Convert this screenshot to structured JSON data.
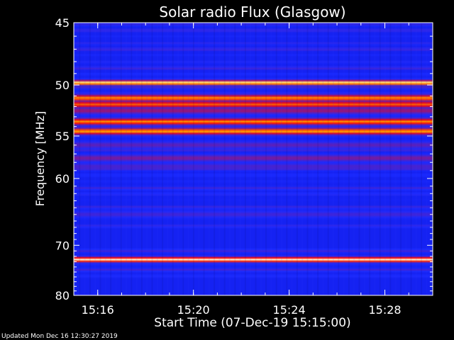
{
  "chart_data": {
    "type": "heatmap",
    "title": "Solar radio Flux (Glasgow)",
    "xlabel": "Start Time (07-Dec-19 15:15:00)",
    "ylabel": "Frequency [MHz]",
    "x_ticks": [
      "15:16",
      "15:20",
      "15:24",
      "15:28"
    ],
    "x_tick_minutes_after_start": [
      1,
      5,
      9,
      13
    ],
    "x_range_minutes_after_start": [
      0,
      15
    ],
    "y_ticks": [
      45,
      50,
      55,
      60,
      70,
      80
    ],
    "y_scale": "reciprocal",
    "y_range_mhz": [
      45,
      80
    ],
    "colormap": [
      "#000060",
      "#0000c0",
      "#1a2aff",
      "#7a1a9a",
      "#ff0000",
      "#ffc000",
      "#ffffe0"
    ],
    "bands": [
      {
        "freq_mhz": 49.8,
        "intensity": 0.95
      },
      {
        "freq_mhz": 51.2,
        "intensity": 0.8
      },
      {
        "freq_mhz": 51.8,
        "intensity": 0.75
      },
      {
        "freq_mhz": 52.4,
        "intensity": 0.55
      },
      {
        "freq_mhz": 53.5,
        "intensity": 0.8
      },
      {
        "freq_mhz": 54.5,
        "intensity": 0.82
      },
      {
        "freq_mhz": 56.0,
        "intensity": 0.45
      },
      {
        "freq_mhz": 57.5,
        "intensity": 0.5
      },
      {
        "freq_mhz": 58.5,
        "intensity": 0.42
      },
      {
        "freq_mhz": 65.0,
        "intensity": 0.4
      },
      {
        "freq_mhz": 72.6,
        "intensity": 1.0
      }
    ],
    "footer": "Updated Mon Dec 16 12:30:27 2019"
  }
}
